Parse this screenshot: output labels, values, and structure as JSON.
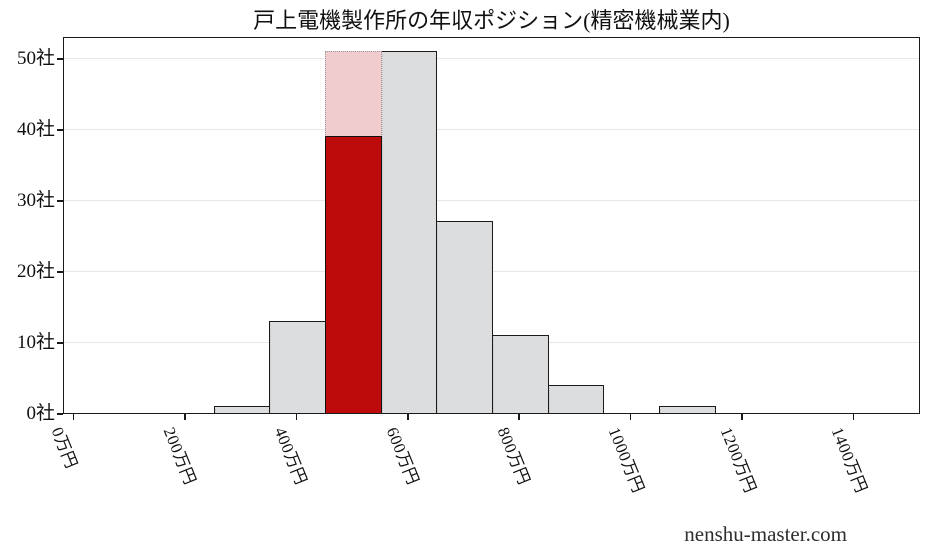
{
  "footer": {
    "text": "nenshu-master.com"
  },
  "colors": {
    "bar_gray": "#dcddde",
    "bar_red": "#bd0b0b",
    "bar_pink": "#f1ccce",
    "edge": "#1a1a1a",
    "grid": "#e8e8e8",
    "dotted_edge": "#9a9a9a"
  },
  "chart_data": {
    "type": "bar",
    "subtype": "histogram",
    "title": "戸上電機製作所の年収ポジション(精密機械業内)",
    "xlabel": "",
    "ylabel": "",
    "x_unit": "万円",
    "y_unit": "社",
    "xlim": [
      -18,
      1521
    ],
    "ylim": [
      0,
      53
    ],
    "grid": "horizontal",
    "legend": "none",
    "bin_width": 100,
    "bars": [
      {
        "bin_start": 250,
        "bin_end": 350,
        "count": 1,
        "style": "gray"
      },
      {
        "bin_start": 350,
        "bin_end": 450,
        "count": 13,
        "style": "gray"
      },
      {
        "bin_start": 450,
        "bin_end": 550,
        "count": 39,
        "style": "red",
        "role": "company-position-bin"
      },
      {
        "bin_start": 550,
        "bin_end": 650,
        "count": 51,
        "style": "gray"
      },
      {
        "bin_start": 650,
        "bin_end": 750,
        "count": 27,
        "style": "gray"
      },
      {
        "bin_start": 750,
        "bin_end": 850,
        "count": 11,
        "style": "gray"
      },
      {
        "bin_start": 850,
        "bin_end": 950,
        "count": 4,
        "style": "gray"
      },
      {
        "bin_start": 1050,
        "bin_end": 1150,
        "count": 1,
        "style": "gray"
      }
    ],
    "overlay_bar": {
      "bin_start": 450,
      "bin_end": 550,
      "count": 51,
      "style": "pink-dotted-outline"
    },
    "x_ticks": [
      {
        "value": 0,
        "label": "0万円"
      },
      {
        "value": 200,
        "label": "200万円"
      },
      {
        "value": 400,
        "label": "400万円"
      },
      {
        "value": 600,
        "label": "600万円"
      },
      {
        "value": 800,
        "label": "800万円"
      },
      {
        "value": 1000,
        "label": "1000万円"
      },
      {
        "value": 1200,
        "label": "1200万円"
      },
      {
        "value": 1400,
        "label": "1400万円"
      }
    ],
    "y_ticks": [
      {
        "value": 0,
        "label": "0社"
      },
      {
        "value": 10,
        "label": "10社"
      },
      {
        "value": 20,
        "label": "20社"
      },
      {
        "value": 30,
        "label": "30社"
      },
      {
        "value": 40,
        "label": "40社"
      },
      {
        "value": 50,
        "label": "50社"
      }
    ]
  }
}
